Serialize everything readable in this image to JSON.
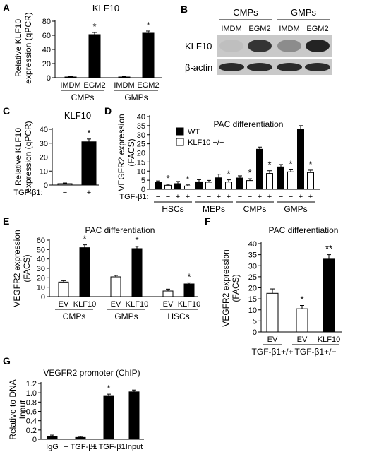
{
  "colors": {
    "ink": "#000000",
    "paper": "#ffffff",
    "blot_band": "#1a1a1a",
    "blot_bg": "#c9c9c9"
  },
  "significance_marker": "*",
  "blot": {
    "panel_label": "B",
    "groups": [
      "CMPs",
      "GMPs"
    ],
    "lanes": [
      "IMDM",
      "EGM2",
      "IMDM",
      "EGM2"
    ],
    "rows": [
      "KLF10",
      "β-actin"
    ],
    "klf10_intensity": [
      0.05,
      0.85,
      0.35,
      0.95
    ],
    "actin_intensity": [
      0.9,
      0.9,
      0.9,
      0.9
    ]
  },
  "chart_data": [
    {
      "id": "A",
      "type": "bar",
      "title": "KLF10",
      "ylabel": "Relative KLF10 expression (qPCR)",
      "ylim": [
        0,
        80
      ],
      "yticks": [
        0,
        20,
        40,
        60,
        80
      ],
      "categories": [
        "IMDM",
        "EGM2",
        "IMDM",
        "EGM2"
      ],
      "groups": [
        {
          "label": "CMPs",
          "members": [
            0,
            1
          ]
        },
        {
          "label": "GMPs",
          "members": [
            2,
            3
          ]
        }
      ],
      "values": [
        1,
        61,
        1,
        63
      ],
      "errors": [
        1,
        3,
        1,
        3
      ],
      "fills": [
        "black",
        "black",
        "black",
        "black"
      ],
      "significance": [
        false,
        true,
        false,
        true
      ]
    },
    {
      "id": "C",
      "type": "bar",
      "title": "KLF10",
      "ylabel": "Relative KLF10 expression (qPCR)",
      "ylim": [
        0,
        40
      ],
      "yticks": [
        0,
        10,
        20,
        30,
        40
      ],
      "factor_label": "TGF-β1:",
      "categories": [
        "−",
        "+"
      ],
      "values": [
        1,
        31
      ],
      "errors": [
        0.5,
        2
      ],
      "fills": [
        "grey",
        "black"
      ],
      "significance": [
        false,
        true
      ]
    },
    {
      "id": "D",
      "type": "bar",
      "title": "PAC differentiation",
      "ylabel": "VEGFR2 expression (FACS)",
      "ylim": [
        0,
        40
      ],
      "yticks": [
        0,
        5,
        10,
        15,
        20,
        25,
        30,
        35,
        40
      ],
      "legend": [
        {
          "name": "WT",
          "fill": "black"
        },
        {
          "name": "KLF10 −/−",
          "fill": "white"
        }
      ],
      "factor_label": "TGF-β1:",
      "groups": [
        {
          "label": "HSCs",
          "signs": [
            "−",
            "−",
            "+",
            "+"
          ],
          "values": [
            3.8,
            2.2,
            3.1,
            1.8
          ],
          "errors": [
            0.8,
            0.6,
            1.2,
            0.6
          ],
          "fills": [
            "black",
            "white",
            "black",
            "white"
          ],
          "significance": [
            false,
            true,
            false,
            true
          ]
        },
        {
          "label": "MEPs",
          "signs": [
            "−",
            "−",
            "+",
            "+"
          ],
          "values": [
            4.1,
            3.9,
            6.3,
            4.0
          ],
          "errors": [
            1.2,
            1.0,
            2.0,
            1.2
          ],
          "fills": [
            "black",
            "white",
            "black",
            "white"
          ],
          "significance": [
            false,
            false,
            false,
            true
          ]
        },
        {
          "label": "CMPs",
          "signs": [
            "−",
            "−",
            "+",
            "+"
          ],
          "values": [
            6.2,
            4.8,
            22.0,
            8.7
          ],
          "errors": [
            1.2,
            1.0,
            1.2,
            1.5
          ],
          "fills": [
            "black",
            "white",
            "black",
            "white"
          ],
          "significance": [
            false,
            true,
            false,
            true
          ]
        },
        {
          "label": "GMPs",
          "signs": [
            "−",
            "−",
            "+",
            "+"
          ],
          "values": [
            12.3,
            9.6,
            33.0,
            9.2
          ],
          "errors": [
            1.3,
            1.1,
            2.0,
            1.3
          ],
          "fills": [
            "black",
            "white",
            "black",
            "white"
          ],
          "significance": [
            false,
            true,
            false,
            true
          ]
        }
      ]
    },
    {
      "id": "E",
      "type": "bar",
      "title": "PAC differentiation",
      "ylabel": "VEGFR2 expression (FACS)",
      "ylim": [
        0,
        60
      ],
      "yticks": [
        0,
        10,
        20,
        30,
        40,
        50,
        60
      ],
      "groups": [
        {
          "label": "CMPs",
          "categories": [
            "EV",
            "KLF10"
          ],
          "values": [
            15.5,
            52
          ],
          "errors": [
            1.5,
            3
          ],
          "fills": [
            "white",
            "black"
          ],
          "significance": [
            false,
            true
          ]
        },
        {
          "label": "GMPs",
          "categories": [
            "EV",
            "KLF10"
          ],
          "values": [
            21,
            51
          ],
          "errors": [
            1.5,
            2.5
          ],
          "fills": [
            "white",
            "black"
          ],
          "significance": [
            false,
            true
          ]
        },
        {
          "label": "HSCs",
          "categories": [
            "EV",
            "KLF10"
          ],
          "values": [
            6,
            13.5
          ],
          "errors": [
            2,
            1.2
          ],
          "fills": [
            "white",
            "black"
          ],
          "significance": [
            false,
            true
          ]
        }
      ]
    },
    {
      "id": "F",
      "type": "bar",
      "title": "PAC differentiation",
      "ylabel": "VEGFR2 expression (FACS)",
      "ylim": [
        0,
        40
      ],
      "yticks": [
        0,
        5,
        10,
        15,
        20,
        25,
        30,
        35,
        40
      ],
      "categories": [
        "EV",
        "EV",
        "KLF10"
      ],
      "groups": [
        {
          "label": "TGF-β1+/+",
          "members": [
            0
          ]
        },
        {
          "label": "TGF-β1+/−",
          "members": [
            1,
            2
          ]
        }
      ],
      "values": [
        17.5,
        10.5,
        33
      ],
      "errors": [
        2,
        1.5,
        2
      ],
      "fills": [
        "white",
        "white",
        "black"
      ],
      "significance": [
        "",
        "*",
        "**"
      ]
    },
    {
      "id": "G",
      "type": "bar",
      "title": "VEGFR2 promoter (ChIP)",
      "ylabel": "Relative to DNA Input",
      "ylim": [
        0,
        1.2
      ],
      "yticks": [
        "0",
        "0.2",
        "0.4",
        "0.6",
        "0.8",
        "1.0",
        "1.2"
      ],
      "categories": [
        "IgG",
        "− TGF-β1",
        "+ TGF-β1",
        "Input"
      ],
      "values": [
        0.06,
        0.04,
        0.94,
        1.02
      ],
      "errors": [
        0.03,
        0.02,
        0.03,
        0.04
      ],
      "fills": [
        "black",
        "black",
        "black",
        "black"
      ],
      "significance": [
        false,
        false,
        true,
        false
      ]
    }
  ]
}
